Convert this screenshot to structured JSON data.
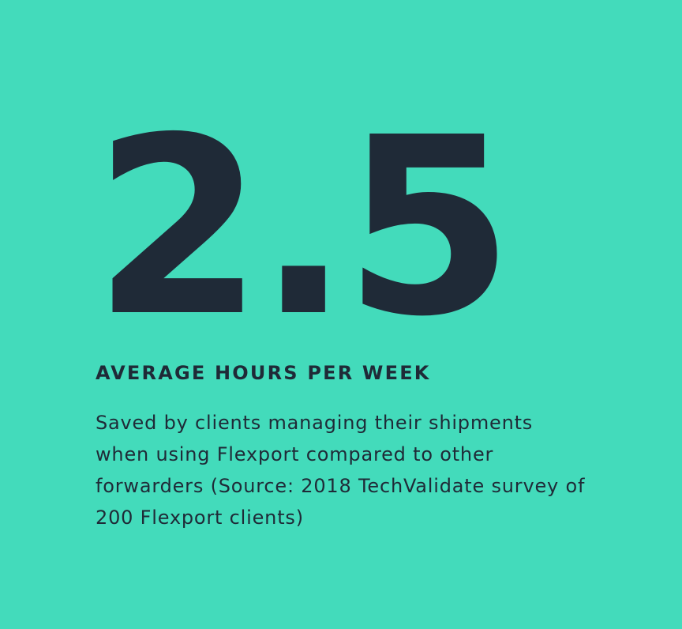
{
  "stat": {
    "value": 2.5,
    "label": "AVERAGE HOURS PER WEEK",
    "description": "Saved by clients managing their shipments when using Flexport compared to other forwarders (Source: 2018 TechValidate survey of 200 Flexport clients)"
  }
}
